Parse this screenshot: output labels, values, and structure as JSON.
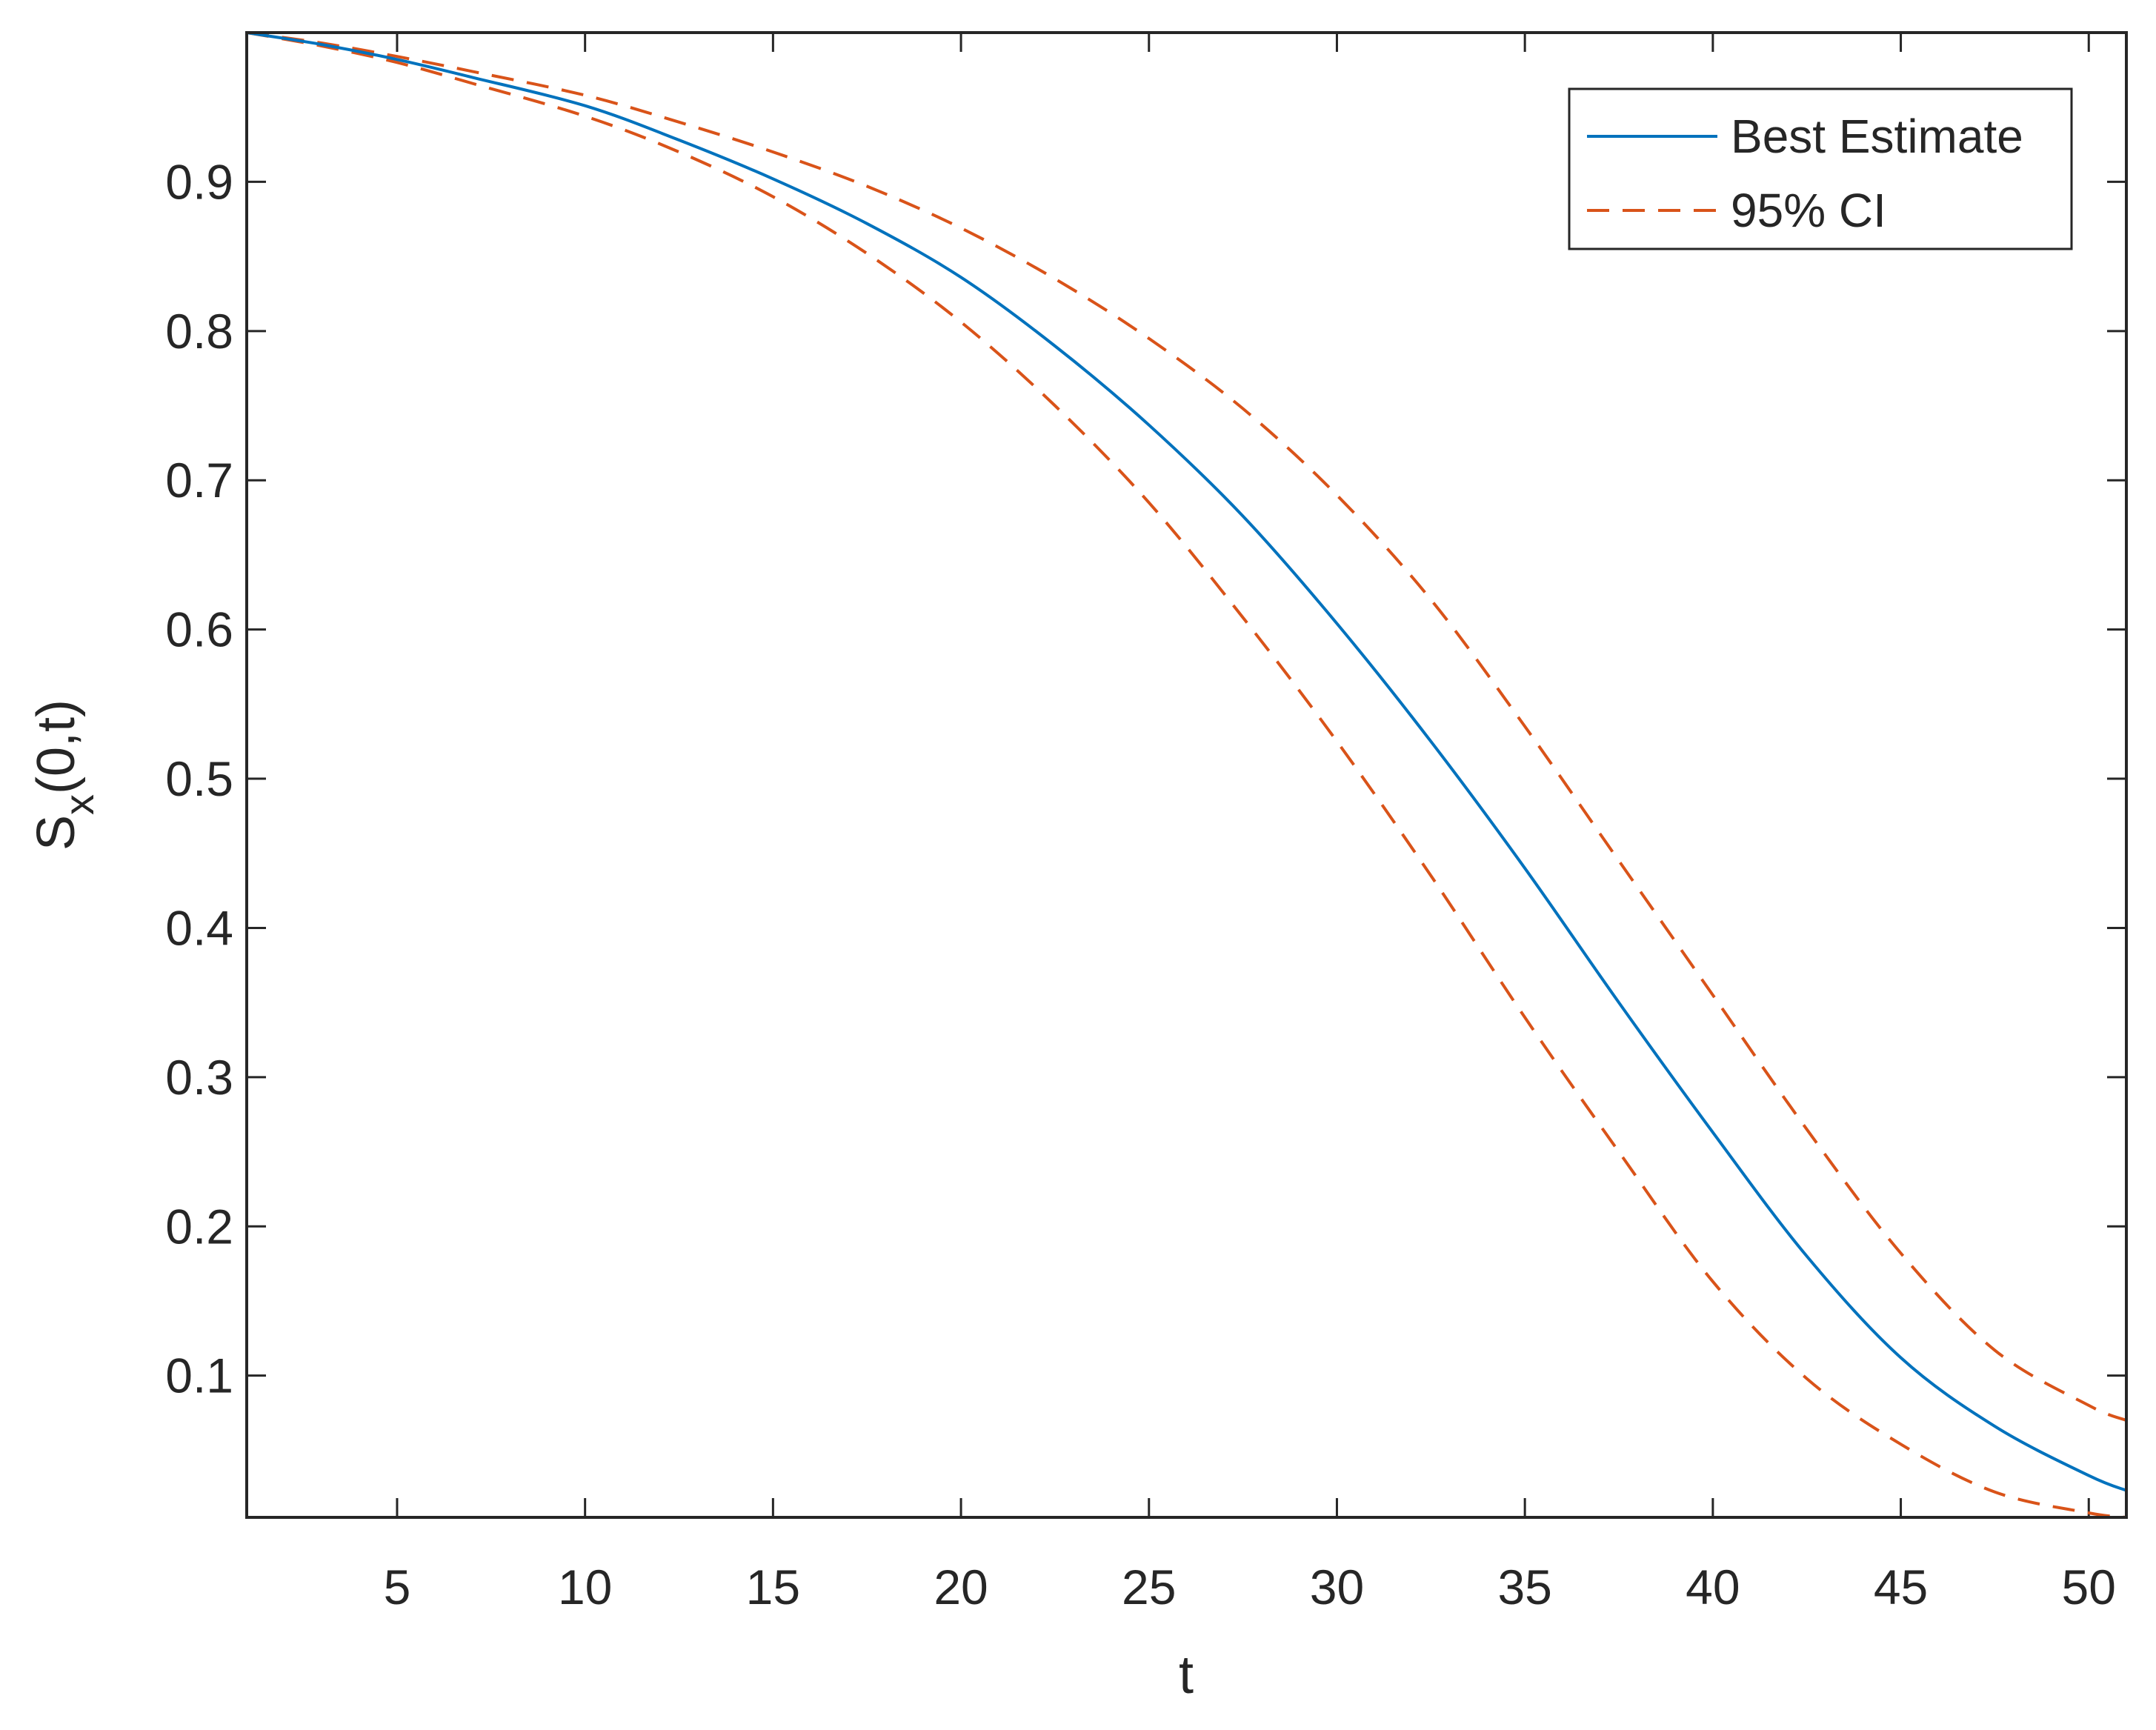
{
  "chart_data": {
    "type": "line",
    "title": "",
    "xlabel": "t",
    "ylabel": {
      "main": "S",
      "subscript": "x",
      "suffix": "(0,t)"
    },
    "xlim": [
      1,
      51
    ],
    "ylim": [
      0.005,
      1.0
    ],
    "xticks": [
      5,
      10,
      15,
      20,
      25,
      30,
      35,
      40,
      45,
      50
    ],
    "xtick_labels": [
      "5",
      "10",
      "15",
      "20",
      "25",
      "30",
      "35",
      "40",
      "45",
      "50"
    ],
    "yticks": [
      0.1,
      0.2,
      0.3,
      0.4,
      0.5,
      0.6,
      0.7,
      0.8,
      0.9
    ],
    "ytick_labels": [
      "0.1",
      "0.2",
      "0.3",
      "0.4",
      "0.5",
      "0.6",
      "0.7",
      "0.8",
      "0.9"
    ],
    "grid": false,
    "box": true,
    "legend_position": "top-right",
    "x": [
      1,
      3,
      5,
      7,
      10,
      12.5,
      15,
      17.5,
      20,
      22.5,
      25,
      27.5,
      30,
      32.5,
      35,
      37.5,
      40,
      42.5,
      45,
      47.5,
      50,
      51
    ],
    "series": [
      {
        "name": "Best Estimate",
        "color": "#0072BD",
        "style": "solid",
        "values": [
          1.0,
          0.992,
          0.982,
          0.97,
          0.951,
          0.928,
          0.902,
          0.872,
          0.836,
          0.79,
          0.737,
          0.676,
          0.604,
          0.525,
          0.44,
          0.35,
          0.263,
          0.18,
          0.112,
          0.066,
          0.033,
          0.023
        ]
      },
      {
        "name": "95% CI",
        "color": "#D95319",
        "style": "dashed",
        "values": [
          1.0,
          0.993,
          0.984,
          0.974,
          0.958,
          0.94,
          0.92,
          0.897,
          0.869,
          0.835,
          0.795,
          0.748,
          0.69,
          0.62,
          0.535,
          0.445,
          0.355,
          0.265,
          0.182,
          0.117,
          0.08,
          0.07
        ]
      },
      {
        "name": "",
        "color": "#D95319",
        "style": "dashed",
        "values": [
          1.0,
          0.991,
          0.98,
          0.966,
          0.944,
          0.92,
          0.89,
          0.852,
          0.806,
          0.75,
          0.685,
          0.608,
          0.525,
          0.435,
          0.34,
          0.25,
          0.163,
          0.098,
          0.054,
          0.022,
          0.008,
          0.005
        ]
      }
    ]
  }
}
